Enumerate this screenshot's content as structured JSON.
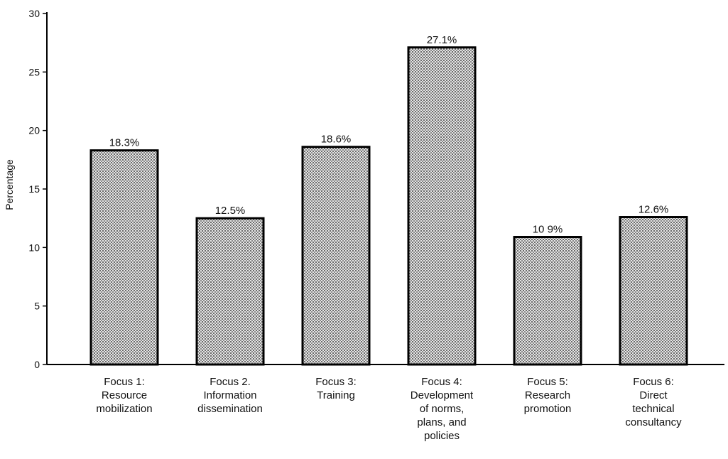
{
  "chart_data": {
    "type": "bar",
    "title": "",
    "xlabel": "",
    "ylabel": "Percentage",
    "ylim": [
      0,
      30
    ],
    "yticks": [
      0,
      5,
      10,
      15,
      20,
      25,
      30
    ],
    "grid": false,
    "legend": "none",
    "categories": [
      [
        "Focus 1:",
        "Resource",
        "mobilization"
      ],
      [
        "Focus 2.",
        "Information",
        "dissemination"
      ],
      [
        "Focus 3:",
        "Training"
      ],
      [
        "Focus 4:",
        "Development",
        "of norms,",
        "plans, and",
        "policies"
      ],
      [
        "Focus 5:",
        "Research",
        "promotion"
      ],
      [
        "Focus 6:",
        "Direct",
        "technical",
        "consultancy"
      ]
    ],
    "values": [
      18.3,
      12.5,
      18.6,
      27.1,
      10.9,
      12.6
    ],
    "value_labels": [
      "18.3%",
      "12.5%",
      "18.6%",
      "27.1%",
      "10 9%",
      "12.6%"
    ],
    "colors": {
      "bar_fill": "#bdbdbd",
      "bar_stroke": "#000000",
      "axis": "#000000"
    }
  }
}
